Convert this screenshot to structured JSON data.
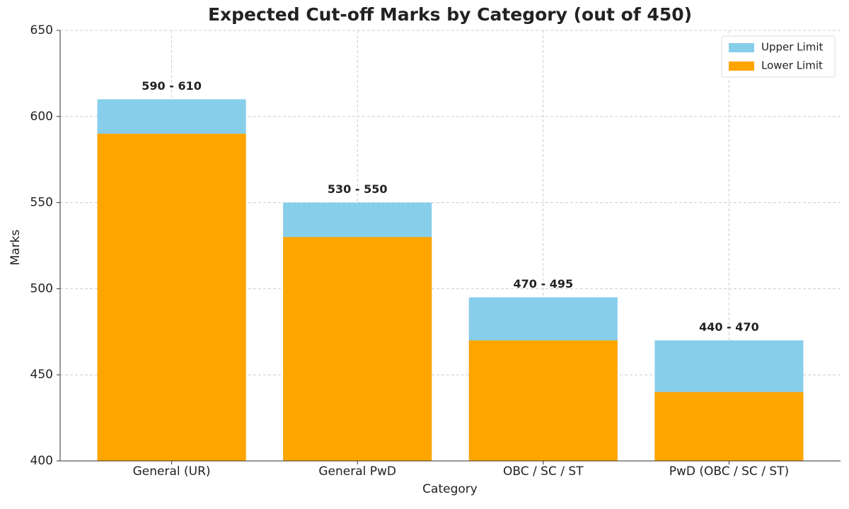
{
  "chart_data": {
    "type": "bar",
    "title": "Expected Cut-off Marks by Category (out of 450)",
    "xlabel": "Category",
    "ylabel": "Marks",
    "categories": [
      "General (UR)",
      "General PwD",
      "OBC / SC / ST",
      "PwD (OBC / SC / ST)"
    ],
    "series": [
      {
        "name": "Upper Limit",
        "color": "#87ceeb",
        "values": [
          610,
          550,
          495,
          470
        ]
      },
      {
        "name": "Lower Limit",
        "color": "#ffa500",
        "values": [
          590,
          530,
          470,
          440
        ]
      }
    ],
    "annotations": [
      "590 - 610",
      "530 - 550",
      "470 - 495",
      "440 - 470"
    ],
    "ylim": [
      400,
      650
    ],
    "yticks": [
      400,
      450,
      500,
      550,
      600,
      650
    ],
    "grid": true,
    "legend": "upper right"
  }
}
